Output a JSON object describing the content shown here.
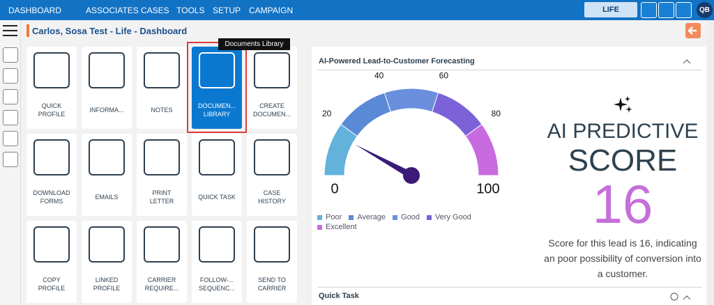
{
  "nav": {
    "items": [
      "DASHBOARD",
      "ASSOCIATES",
      "CASES",
      "TOOLS",
      "SETUP",
      "CAMPAIGN"
    ],
    "line_of_business": "LIFE",
    "avatar": "QB"
  },
  "header": {
    "title": "Carlos, Sosa Test - Life - Dashboard"
  },
  "tooltip": "Documents Library",
  "tiles": [
    {
      "lines": [
        "QUICK",
        "PROFILE"
      ]
    },
    {
      "lines": [
        "INFORMA..."
      ]
    },
    {
      "lines": [
        "NOTES"
      ]
    },
    {
      "lines": [
        "DOCUMEN...",
        "LIBRARY"
      ],
      "active": true
    },
    {
      "lines": [
        "CREATE",
        "DOCUMEN..."
      ]
    },
    {
      "lines": [
        "DOWNLOAD",
        "FORMS"
      ]
    },
    {
      "lines": [
        "EMAILS"
      ]
    },
    {
      "lines": [
        "PRINT",
        "LETTER"
      ]
    },
    {
      "lines": [
        "QUICK TASK"
      ]
    },
    {
      "lines": [
        "CASE",
        "HISTORY"
      ]
    },
    {
      "lines": [
        "COPY",
        "PROFILE"
      ]
    },
    {
      "lines": [
        "LINKED",
        "PROFILE"
      ]
    },
    {
      "lines": [
        "CARRIER",
        "REQUIRE..."
      ]
    },
    {
      "lines": [
        "FOLLOW-...",
        "SEQUENC..."
      ]
    },
    {
      "lines": [
        "SEND TO",
        "CARRIER"
      ]
    }
  ],
  "forecast": {
    "title": "AI-Powered Lead-to-Customer Forecasting",
    "gauge": {
      "lim": [
        0,
        100
      ],
      "ticks": [
        0,
        20,
        40,
        60,
        80,
        100
      ],
      "value": 16,
      "bands": [
        {
          "name": "Poor",
          "color": "#62b2dc"
        },
        {
          "name": "Average",
          "color": "#5a8ad6"
        },
        {
          "name": "Good",
          "color": "#6a8fdd"
        },
        {
          "name": "Very Good",
          "color": "#7b62d8"
        },
        {
          "name": "Excellent",
          "color": "#c86be0"
        }
      ]
    },
    "score_heading": [
      "AI PREDICTIVE",
      "SCORE"
    ],
    "description": "Score for this lead is 16, indicating an poor possibility of conversion into a customer."
  },
  "quick_task": {
    "title": "Quick Task"
  }
}
